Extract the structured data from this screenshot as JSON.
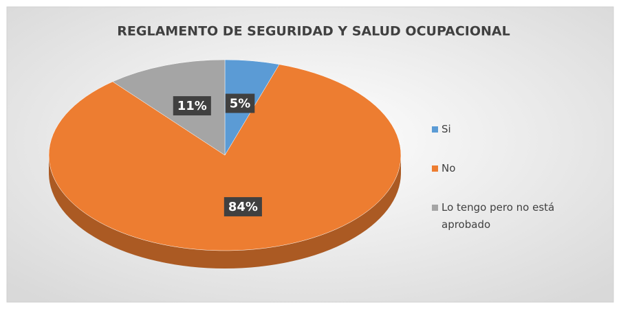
{
  "chart_data": {
    "type": "pie",
    "title": "REGLAMENTO DE SEGURIDAD Y SALUD OCUPACIONAL",
    "categories": [
      "Si",
      "No",
      "Lo tengo pero no está aprobado"
    ],
    "values": [
      5,
      84,
      11
    ],
    "value_labels": [
      "5%",
      "84%",
      "11%"
    ],
    "colors": [
      "#5b9bd5",
      "#ed7d31",
      "#a5a5a5"
    ],
    "legend": "right"
  }
}
